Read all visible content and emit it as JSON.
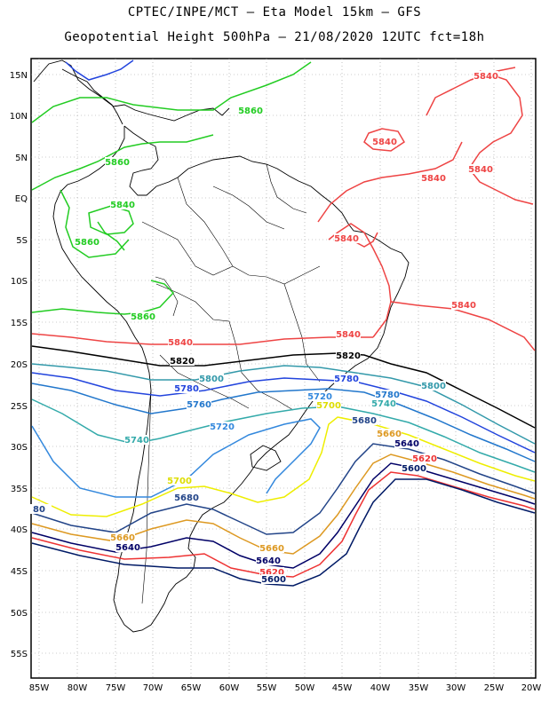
{
  "header": {
    "line1": "CPTEC/INPE/MCT –  Eta Model 15km – GFS",
    "line2": "Geopotential Height 500hPa – 21/08/2020 12UTC fct=18h"
  },
  "axes": {
    "lon_ticks": [
      "85W",
      "80W",
      "75W",
      "70W",
      "65W",
      "60W",
      "55W",
      "50W",
      "45W",
      "40W",
      "35W",
      "30W",
      "25W",
      "20W"
    ],
    "lat_ticks": [
      "15N",
      "10N",
      "5N",
      "EQ",
      "5S",
      "10S",
      "15S",
      "20S",
      "25S",
      "30S",
      "35S",
      "40S",
      "45S",
      "50S",
      "55S"
    ]
  },
  "contour_colors": {
    "5880": "#22cc22",
    "5860": "#22cc22",
    "5840": "#ee4444",
    "5820": "#000000",
    "5800": "#3399aa",
    "5780": "#2244dd",
    "5760": "#2277cc",
    "5740": "#33aaaa",
    "5720": "#3388dd",
    "5700": "#eeee00",
    "5680": "#224488",
    "5660": "#dd9922",
    "5640": "#000066",
    "5620": "#ee3333",
    "5600": "#001a66",
    "coast": "#000000",
    "blue_top": "#2244dd"
  },
  "contour_labels": [
    {
      "text": "5860",
      "color": "#22cc22"
    },
    {
      "text": "5860",
      "color": "#22cc22"
    },
    {
      "text": "5840",
      "color": "#22cc22"
    },
    {
      "text": "5860",
      "color": "#22cc22"
    },
    {
      "text": "5860",
      "color": "#22cc22"
    },
    {
      "text": "5840",
      "color": "#ee4444"
    },
    {
      "text": "5840",
      "color": "#ee4444"
    },
    {
      "text": "5840",
      "color": "#ee4444"
    },
    {
      "text": "5840",
      "color": "#ee4444"
    },
    {
      "text": "5840",
      "color": "#ee4444"
    },
    {
      "text": "5840",
      "color": "#ee4444"
    },
    {
      "text": "5840",
      "color": "#ee4444"
    },
    {
      "text": "5840",
      "color": "#ee4444"
    },
    {
      "text": "5820",
      "color": "#000000"
    },
    {
      "text": "5820",
      "color": "#000000"
    },
    {
      "text": "5800",
      "color": "#3399aa"
    },
    {
      "text": "5800",
      "color": "#3399aa"
    },
    {
      "text": "5780",
      "color": "#2244dd"
    },
    {
      "text": "5780",
      "color": "#2244dd"
    },
    {
      "text": "5780",
      "color": "#2277cc"
    },
    {
      "text": "5760",
      "color": "#2277cc"
    },
    {
      "text": "5740",
      "color": "#33aaaa"
    },
    {
      "text": "5740",
      "color": "#33aaaa"
    },
    {
      "text": "5720",
      "color": "#3388dd"
    },
    {
      "text": "5720",
      "color": "#3388dd"
    },
    {
      "text": "5700",
      "color": "#dddd00"
    },
    {
      "text": "5700",
      "color": "#dddd00"
    },
    {
      "text": "5680",
      "color": "#224488"
    },
    {
      "text": "5680",
      "color": "#224488"
    },
    {
      "text": "5660",
      "color": "#dd9922"
    },
    {
      "text": "5660",
      "color": "#dd9922"
    },
    {
      "text": "5660",
      "color": "#dd9922"
    },
    {
      "text": "5640",
      "color": "#000066"
    },
    {
      "text": "5640",
      "color": "#000066"
    },
    {
      "text": "5640",
      "color": "#000066"
    },
    {
      "text": "5620",
      "color": "#ee3333"
    },
    {
      "text": "5620",
      "color": "#ee3333"
    },
    {
      "text": "5600",
      "color": "#001a66"
    },
    {
      "text": "5600",
      "color": "#001a66"
    },
    {
      "text": "80",
      "color": "#224488"
    }
  ]
}
